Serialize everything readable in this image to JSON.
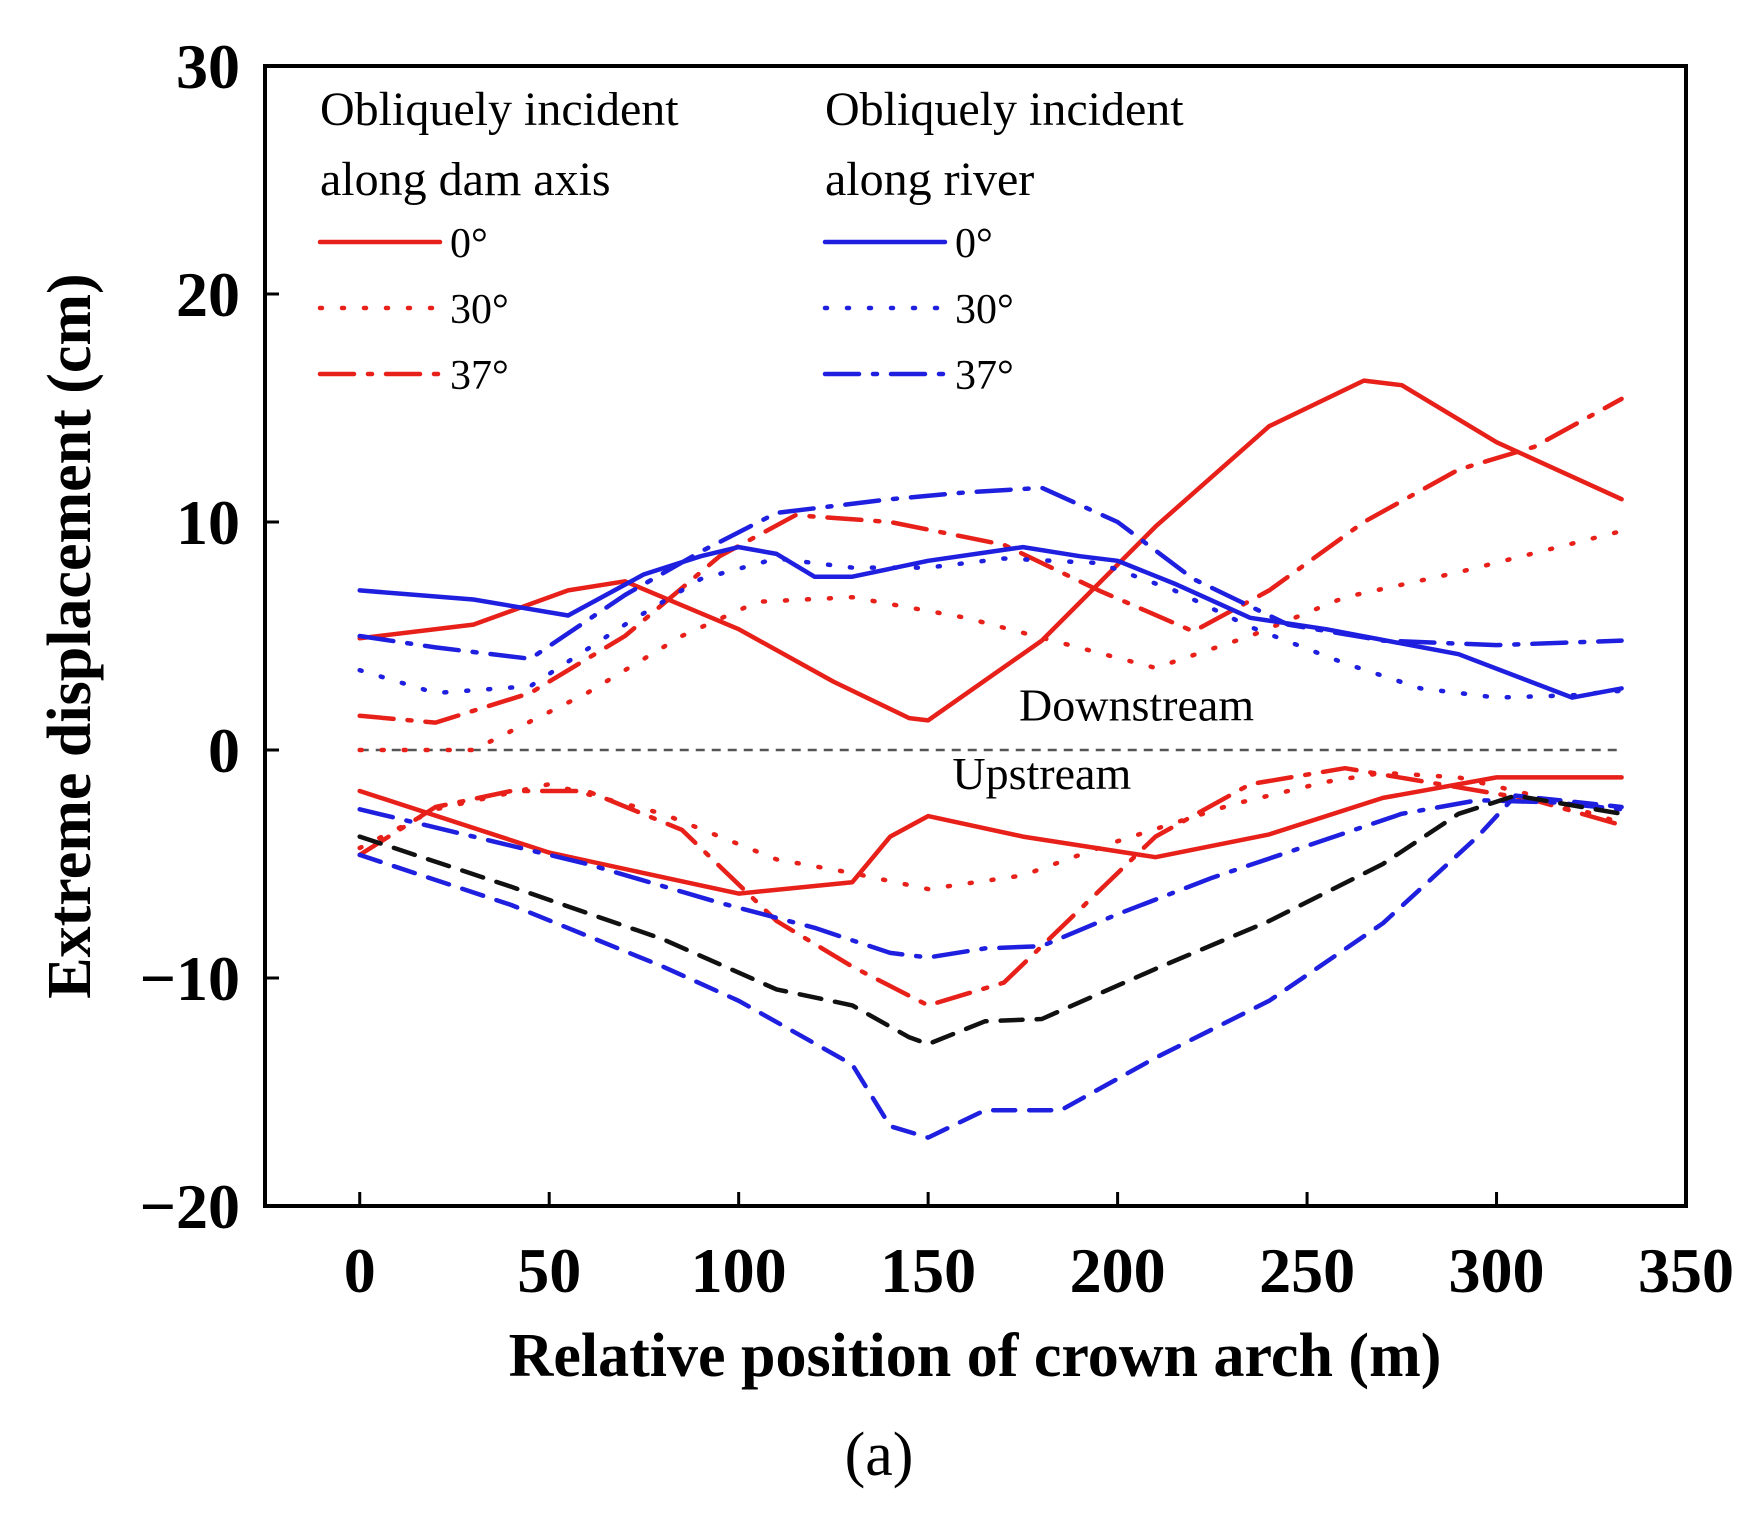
{
  "chart_data": {
    "type": "line",
    "xlabel": "Relative position of crown arch (m)",
    "ylabel": "Extreme displacement (cm)",
    "xlim": [
      -25,
      350
    ],
    "ylim": [
      -20,
      30
    ],
    "xticks": [
      0,
      50,
      100,
      150,
      200,
      250,
      300,
      350
    ],
    "yticks": [
      -20,
      -10,
      0,
      10,
      20,
      30
    ],
    "xtick_labels": [
      "0",
      "50",
      "100",
      "150",
      "200",
      "250",
      "300",
      "350"
    ],
    "ytick_labels": [
      "−20",
      "−10",
      "0",
      "10",
      "20",
      "30"
    ],
    "panel_label": "(a)",
    "legend": {
      "placement": "top-left",
      "groups": [
        {
          "title_lines": [
            "Obliquely incident",
            "along dam axis"
          ],
          "color": "#e8201a",
          "entries": [
            "0°",
            "30°",
            "37°"
          ]
        },
        {
          "title_lines": [
            "Obliquely incident",
            "along river"
          ],
          "color": "#1f1fe0",
          "entries": [
            "0°",
            "30°",
            "37°"
          ]
        }
      ]
    },
    "annotations": [
      {
        "text": "Downstream",
        "x": 205,
        "y": 1.3
      },
      {
        "text": "Upstream",
        "x": 180,
        "y": -1.7
      }
    ],
    "reference_line": {
      "y": 0,
      "style": "dashed",
      "color": "#555555"
    },
    "series": [
      {
        "group": "along dam axis",
        "name": "0°",
        "color": "#e8201a",
        "style": "solid",
        "side": "downstream",
        "x": [
          0,
          30,
          55,
          70,
          100,
          125,
          145,
          150,
          180,
          210,
          240,
          265,
          275,
          300,
          333
        ],
        "y": [
          4.9,
          5.5,
          7.0,
          7.4,
          5.3,
          3.0,
          1.4,
          1.3,
          4.8,
          9.8,
          14.2,
          16.2,
          16.0,
          13.5,
          11.0
        ]
      },
      {
        "group": "along dam axis",
        "name": "0°",
        "color": "#e8201a",
        "style": "solid",
        "side": "upstream",
        "x": [
          0,
          50,
          100,
          130,
          140,
          150,
          175,
          210,
          240,
          270,
          300,
          333
        ],
        "y": [
          -1.8,
          -4.5,
          -6.3,
          -5.8,
          -3.8,
          -2.9,
          -3.8,
          -4.7,
          -3.7,
          -2.1,
          -1.2,
          -1.2
        ]
      },
      {
        "group": "along dam axis",
        "name": "30°",
        "color": "#e8201a",
        "style": "dotted",
        "side": "downstream",
        "x": [
          0,
          30,
          60,
          85,
          105,
          130,
          160,
          185,
          210,
          235,
          260,
          290,
          333
        ],
        "y": [
          0,
          0,
          2.5,
          5.0,
          6.5,
          6.7,
          5.8,
          4.7,
          3.6,
          5.0,
          6.7,
          7.8,
          9.6
        ]
      },
      {
        "group": "along dam axis",
        "name": "30°",
        "color": "#e8201a",
        "style": "dotted",
        "side": "upstream",
        "x": [
          0,
          20,
          50,
          80,
          110,
          130,
          150,
          175,
          200,
          230,
          255,
          270,
          290,
          310,
          333
        ],
        "y": [
          -4.3,
          -2.6,
          -1.5,
          -2.8,
          -4.8,
          -5.4,
          -6.1,
          -5.5,
          -4.0,
          -2.4,
          -1.4,
          -1.0,
          -1.2,
          -2.0,
          -3.2
        ]
      },
      {
        "group": "along dam axis",
        "name": "37°",
        "color": "#e8201a",
        "style": "dashdot",
        "side": "downstream",
        "x": [
          0,
          20,
          45,
          70,
          95,
          115,
          140,
          170,
          195,
          220,
          240,
          265,
          290,
          310,
          333
        ],
        "y": [
          1.5,
          1.2,
          2.5,
          5.0,
          8.5,
          10.3,
          10.0,
          9.0,
          7.0,
          5.2,
          7.0,
          10.0,
          12.3,
          13.3,
          15.4
        ]
      },
      {
        "group": "along dam axis",
        "name": "37°",
        "color": "#e8201a",
        "style": "dashdot",
        "side": "upstream",
        "x": [
          0,
          20,
          40,
          60,
          85,
          110,
          130,
          150,
          170,
          190,
          210,
          235,
          260,
          285,
          310,
          333
        ],
        "y": [
          -4.6,
          -2.5,
          -1.8,
          -1.8,
          -3.5,
          -7.5,
          -9.5,
          -11.2,
          -10.2,
          -7.0,
          -3.8,
          -1.5,
          -0.8,
          -1.5,
          -2.2,
          -3.3
        ]
      },
      {
        "group": "along river",
        "name": "0°",
        "color": "#1f1fe0",
        "style": "solid",
        "side": "downstream",
        "x": [
          0,
          30,
          55,
          75,
          90,
          100,
          110,
          120,
          130,
          150,
          175,
          190,
          200,
          215,
          235,
          255,
          290,
          320,
          333
        ],
        "y": [
          7.0,
          6.6,
          5.9,
          7.7,
          8.5,
          8.9,
          8.6,
          7.6,
          7.6,
          8.3,
          8.9,
          8.5,
          8.3,
          7.3,
          5.8,
          5.3,
          4.2,
          2.3,
          2.7
        ]
      },
      {
        "group": "along river",
        "name": "30°",
        "color": "#1f1fe0",
        "style": "dotted",
        "side": "downstream",
        "x": [
          0,
          20,
          45,
          70,
          90,
          110,
          130,
          150,
          170,
          195,
          215,
          235,
          260,
          280,
          300,
          320,
          333
        ],
        "y": [
          3.5,
          2.5,
          2.8,
          5.5,
          7.5,
          8.4,
          8.0,
          8.0,
          8.4,
          8.2,
          7.0,
          5.4,
          3.8,
          2.7,
          2.3,
          2.4,
          2.6
        ]
      },
      {
        "group": "along river",
        "name": "37°",
        "color": "#1f1fe0",
        "style": "dashdot",
        "side": "downstream",
        "x": [
          0,
          20,
          45,
          70,
          90,
          110,
          140,
          160,
          180,
          200,
          220,
          245,
          270,
          300,
          333
        ],
        "y": [
          5.0,
          4.5,
          4.0,
          6.8,
          8.7,
          10.4,
          11.0,
          11.3,
          11.5,
          10.0,
          7.5,
          5.5,
          4.8,
          4.6,
          4.8
        ]
      },
      {
        "group": "along river",
        "name": "37°",
        "color": "#1f1fe0",
        "style": "dashdot",
        "side": "upstream",
        "x": [
          0,
          30,
          60,
          95,
          120,
          140,
          150,
          165,
          180,
          200,
          225,
          250,
          275,
          295,
          315,
          333
        ],
        "y": [
          -2.6,
          -3.8,
          -5.0,
          -6.7,
          -7.8,
          -8.9,
          -9.1,
          -8.7,
          -8.6,
          -7.2,
          -5.6,
          -4.2,
          -2.8,
          -2.2,
          -2.3,
          -2.6
        ]
      },
      {
        "group": "unlabeled",
        "color": "#1f1fe0",
        "style": "dashed",
        "side": "upstream",
        "x": [
          0,
          40,
          80,
          100,
          130,
          140,
          150,
          165,
          185,
          210,
          240,
          270,
          295,
          305,
          333
        ],
        "y": [
          -4.6,
          -6.8,
          -9.5,
          -11.0,
          -13.8,
          -16.5,
          -17.0,
          -15.8,
          -15.8,
          -13.5,
          -11.0,
          -7.6,
          -3.8,
          -2.0,
          -2.5
        ]
      },
      {
        "group": "unlabeled",
        "color": "#111111",
        "style": "dashed",
        "side": "upstream",
        "x": [
          0,
          40,
          80,
          110,
          130,
          145,
          150,
          165,
          180,
          210,
          240,
          270,
          290,
          305,
          333
        ],
        "y": [
          -3.8,
          -6.0,
          -8.3,
          -10.5,
          -11.2,
          -12.6,
          -12.9,
          -11.9,
          -11.8,
          -9.6,
          -7.5,
          -5.0,
          -2.8,
          -2.0,
          -2.8
        ]
      }
    ]
  }
}
